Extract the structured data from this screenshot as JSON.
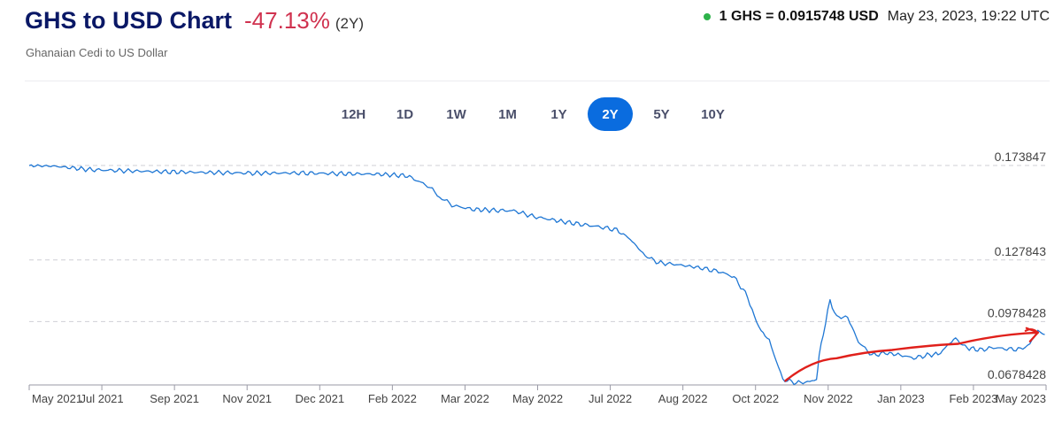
{
  "header": {
    "title": "GHS to USD Chart",
    "change": "-47.13%",
    "range_note": "(2Y)",
    "subtitle": "Ghanaian Cedi to US Dollar",
    "rate": "1 GHS = 0.0915748 USD",
    "timestamp": "May 23, 2023, 19:22 UTC"
  },
  "range_tabs": [
    {
      "label": "12H",
      "active": false
    },
    {
      "label": "1D",
      "active": false
    },
    {
      "label": "1W",
      "active": false
    },
    {
      "label": "1M",
      "active": false
    },
    {
      "label": "1Y",
      "active": false
    },
    {
      "label": "2Y",
      "active": true
    },
    {
      "label": "5Y",
      "active": false
    },
    {
      "label": "10Y",
      "active": false
    }
  ],
  "colors": {
    "line": "#1f77d4",
    "accent": "#0a6cdf",
    "negative": "#d0324f",
    "live": "#2db24a",
    "annotation": "#e0201b"
  },
  "chart_data": {
    "type": "line",
    "x_tick_labels": [
      "May 2021",
      "Jul 2021",
      "Sep 2021",
      "Nov 2021",
      "Dec 2021",
      "Feb 2022",
      "Mar 2022",
      "May 2022",
      "Jul 2022",
      "Aug 2022",
      "Oct 2022",
      "Nov 2022",
      "Jan 2023",
      "Feb 2023",
      "May 2023"
    ],
    "y_tick_labels": [
      "0.173847",
      "0.127843",
      "0.0978428",
      "0.0678428"
    ],
    "y_ticks": [
      0.173847,
      0.127843,
      0.0978428,
      0.0678428
    ],
    "ylim": [
      0.0678428,
      0.173847
    ],
    "xlim": [
      "2021-05-01",
      "2023-05-24"
    ],
    "grid": "horizontal-dashed",
    "series": [
      {
        "x": [
          "2021-05-01",
          "2021-05-20",
          "2021-06-15",
          "2021-07-15",
          "2021-08-15",
          "2021-09-15",
          "2021-10-15",
          "2021-11-15",
          "2021-12-15",
          "2022-01-15",
          "2022-02-05",
          "2022-02-20",
          "2022-03-01",
          "2022-03-10",
          "2022-03-25",
          "2022-04-10",
          "2022-04-25",
          "2022-05-10",
          "2022-05-25",
          "2022-06-10",
          "2022-06-25",
          "2022-07-10",
          "2022-07-20",
          "2022-07-31",
          "2022-08-10",
          "2022-08-25",
          "2022-09-10",
          "2022-09-25",
          "2022-10-05",
          "2022-10-15",
          "2022-10-20",
          "2022-10-25",
          "2022-10-31",
          "2022-11-10",
          "2022-11-20",
          "2022-11-30",
          "2022-12-05",
          "2022-12-07",
          "2022-12-10",
          "2022-12-15",
          "2022-12-20",
          "2022-12-28",
          "2023-01-05",
          "2023-01-15",
          "2023-01-25",
          "2023-02-05",
          "2023-02-15",
          "2023-02-25",
          "2023-03-05",
          "2023-03-12",
          "2023-03-18",
          "2023-03-25",
          "2023-04-05",
          "2023-04-15",
          "2023-04-25",
          "2023-05-05",
          "2023-05-12",
          "2023-05-18",
          "2023-05-23"
        ],
        "values": [
          0.1738,
          0.1735,
          0.1718,
          0.1712,
          0.1707,
          0.1704,
          0.1701,
          0.1702,
          0.1699,
          0.1696,
          0.1688,
          0.164,
          0.1585,
          0.1545,
          0.1525,
          0.152,
          0.1518,
          0.1489,
          0.1472,
          0.1455,
          0.1442,
          0.1425,
          0.138,
          0.13,
          0.1265,
          0.1255,
          0.124,
          0.122,
          0.1195,
          0.11,
          0.1,
          0.0935,
          0.0886,
          0.0697,
          0.068,
          0.0685,
          0.07,
          0.081,
          0.092,
          0.108,
          0.1,
          0.1,
          0.088,
          0.0815,
          0.0825,
          0.0816,
          0.08,
          0.0815,
          0.082,
          0.086,
          0.09,
          0.0853,
          0.084,
          0.0852,
          0.0845,
          0.0843,
          0.087,
          0.0935,
          0.0915
        ]
      }
    ],
    "annotation": {
      "type": "freehand-arrow",
      "color": "#e0201b",
      "from": [
        "2022-11-12",
        0.069
      ],
      "via": [
        [
          "2022-12-20",
          0.08
        ],
        [
          "2023-01-30",
          0.084
        ],
        [
          "2023-03-20",
          0.087
        ]
      ],
      "to": [
        "2023-05-18",
        0.0925
      ]
    }
  }
}
